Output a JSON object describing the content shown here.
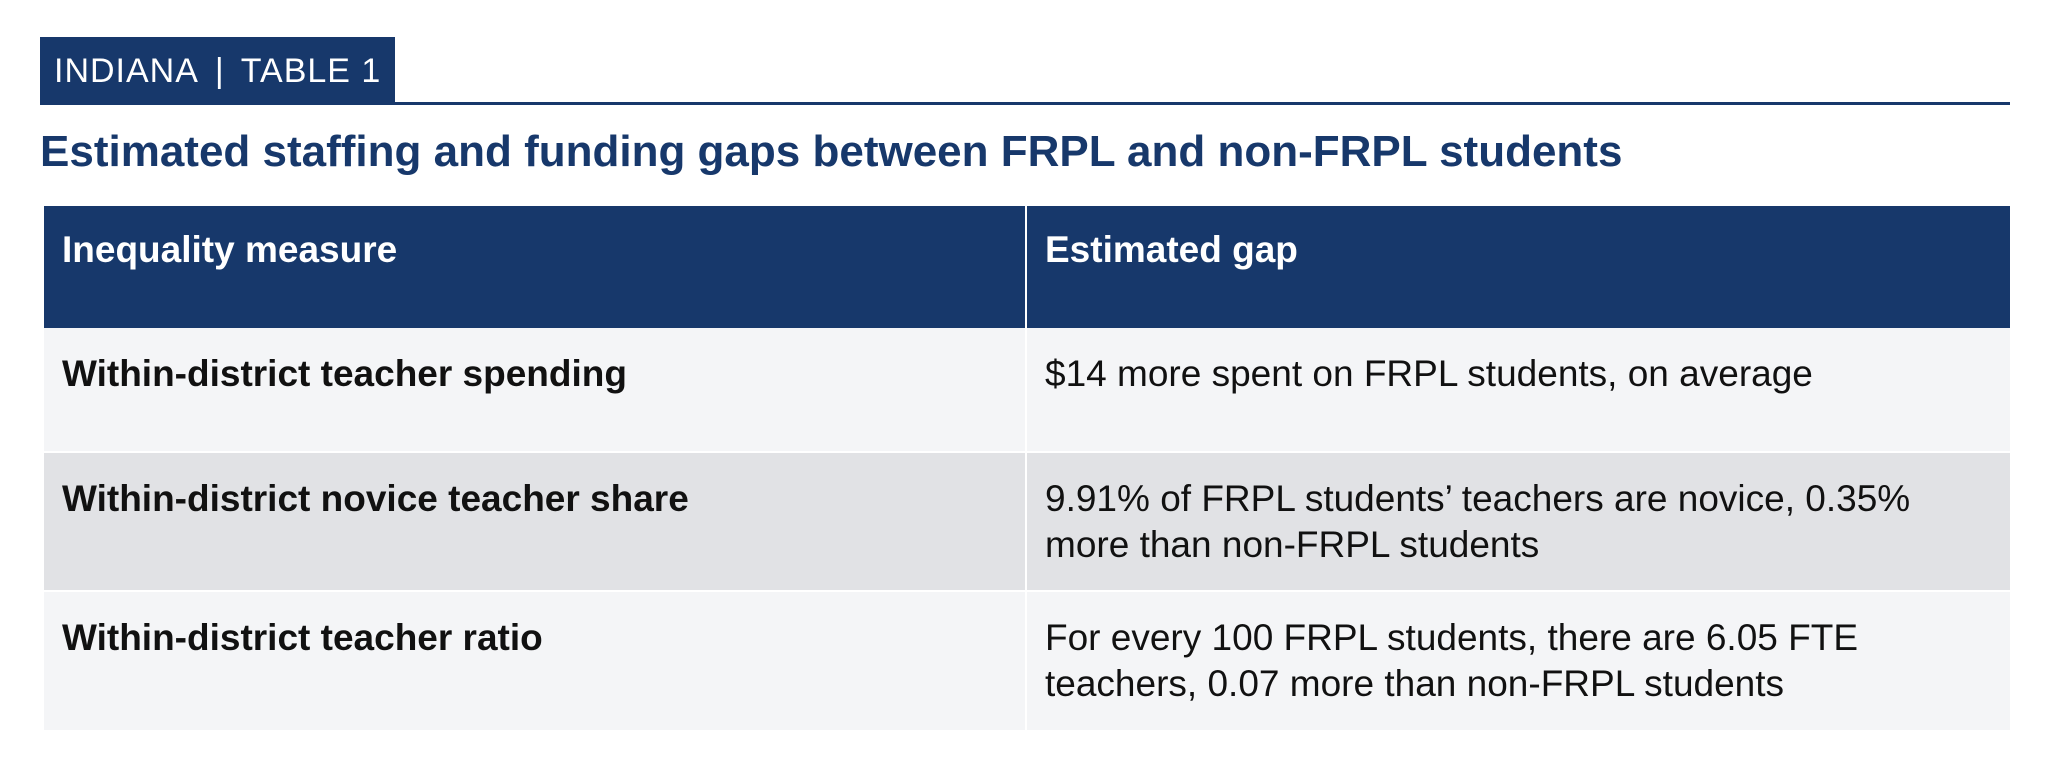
{
  "header": {
    "state": "INDIANA",
    "separator": "|",
    "table_label": "TABLE 1"
  },
  "title": "Estimated staffing and funding gaps between FRPL and non-FRPL students",
  "table": {
    "columns": [
      "Inequality measure",
      "Estimated gap"
    ],
    "rows": [
      {
        "measure": "Within-district teacher spending",
        "gap": "$14 more spent on FRPL students, on average"
      },
      {
        "measure": "Within-district novice teacher share",
        "gap": "9.91% of FRPL students’ teachers are novice, 0.35% more than non-FRPL students"
      },
      {
        "measure": "Within-district teacher ratio",
        "gap": "For every 100 FRPL students, there are 6.05 FTE teachers, 0.07 more than non-FRPL students"
      }
    ]
  },
  "colors": {
    "navy": "#17386b",
    "row_light": "#f4f5f7",
    "row_dark": "#e1e2e5"
  }
}
